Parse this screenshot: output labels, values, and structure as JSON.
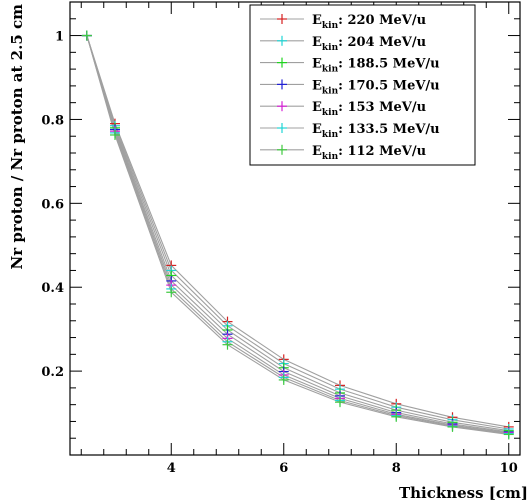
{
  "chart_data": {
    "type": "line",
    "xlabel": "Thickness [cm]",
    "ylabel": "Nr proton / Nr proton at 2.5 cm",
    "xlim": [
      2.2,
      10.2
    ],
    "ylim": [
      0.0,
      1.08
    ],
    "x_ticks": [
      4,
      6,
      8,
      10
    ],
    "y_ticks": [
      0.2,
      0.4,
      0.6,
      0.8,
      1
    ],
    "x_tick_labels": [
      "4",
      "6",
      "8",
      "10"
    ],
    "y_tick_labels": [
      "0.2",
      "0.4",
      "0.6",
      "0.8",
      "1"
    ],
    "legend_placement": "top-right",
    "line_color": "#a0a0a0",
    "x": [
      2.5,
      3,
      4,
      5,
      6,
      7,
      8,
      9,
      10
    ],
    "series": [
      {
        "name": "E_kin: 220 MeV/u",
        "name_main": "E",
        "name_sub": "kin",
        "name_rest": ": 220 MeV/u",
        "color": "#d42020",
        "values": [
          1,
          0.79,
          0.452,
          0.318,
          0.228,
          0.166,
          0.122,
          0.09,
          0.067
        ]
      },
      {
        "name": "E_kin: 204 MeV/u",
        "name_main": "E",
        "name_sub": "kin",
        "name_rest": ": 204 MeV/u",
        "color": "#20d4d4",
        "values": [
          1,
          0.785,
          0.44,
          0.308,
          0.218,
          0.157,
          0.114,
          0.084,
          0.062
        ]
      },
      {
        "name": "E_kin: 188.5 MeV/u",
        "name_main": "E",
        "name_sub": "kin",
        "name_rest": ": 188.5 MeV/u",
        "color": "#20d420",
        "values": [
          1,
          0.78,
          0.428,
          0.298,
          0.208,
          0.148,
          0.107,
          0.078,
          0.058
        ]
      },
      {
        "name": "E_kin: 170.5 MeV/u",
        "name_main": "E",
        "name_sub": "kin",
        "name_rest": ": 170.5 MeV/u",
        "color": "#2020d4",
        "values": [
          1,
          0.776,
          0.415,
          0.288,
          0.199,
          0.141,
          0.101,
          0.074,
          0.055
        ]
      },
      {
        "name": "E_kin: 153 MeV/u",
        "name_main": "E",
        "name_sub": "kin",
        "name_rest": ": 153 MeV/u",
        "color": "#d420d4",
        "values": [
          1,
          0.772,
          0.405,
          0.278,
          0.191,
          0.135,
          0.097,
          0.071,
          0.053
        ]
      },
      {
        "name": "E_kin: 133.5 MeV/u",
        "name_main": "E",
        "name_sub": "kin",
        "name_rest": ": 133.5 MeV/u",
        "color": "#20d4d4",
        "values": [
          1,
          0.768,
          0.396,
          0.27,
          0.185,
          0.13,
          0.094,
          0.069,
          0.051
        ]
      },
      {
        "name": "E_kin: 112 MeV/u",
        "name_main": "E",
        "name_sub": "kin",
        "name_rest": ": 112 MeV/u",
        "color": "#3ec93e",
        "values": [
          1,
          0.763,
          0.388,
          0.263,
          0.179,
          0.126,
          0.091,
          0.067,
          0.049
        ]
      }
    ]
  }
}
